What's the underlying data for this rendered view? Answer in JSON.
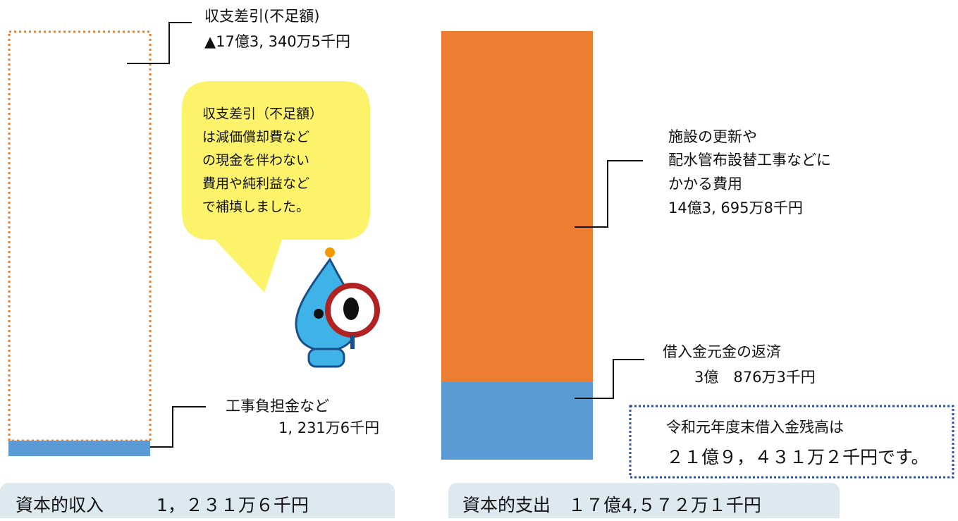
{
  "revenue": {
    "deficit": {
      "title": "収支差引(不足額)",
      "amount": "▲17億3, 340万5千円"
    },
    "contribution": {
      "title": "工事負担金など",
      "amount": "1, 231万6千円"
    },
    "bubble": [
      "収支差引（不足額）",
      "は減価償却費など",
      "の現金を伴わない",
      "費用や純利益など",
      "で補填しました。"
    ],
    "total": "資本的収入　　　1，２３１万６千円"
  },
  "expenditure": {
    "renewal": {
      "lines": [
        "施設の更新や",
        "配水管布設替工事などに",
        "かかる費用"
      ],
      "amount": "14億3, 695万8千円"
    },
    "repayment": {
      "title": "借入金元金の返済",
      "amount": "3億　876万3千円"
    },
    "balance_note": [
      "令和元年度末借入金残高は",
      "２１億９，４３１万２千円です。"
    ],
    "total": "資本的支出　１７億4,５７２万１千円"
  }
}
